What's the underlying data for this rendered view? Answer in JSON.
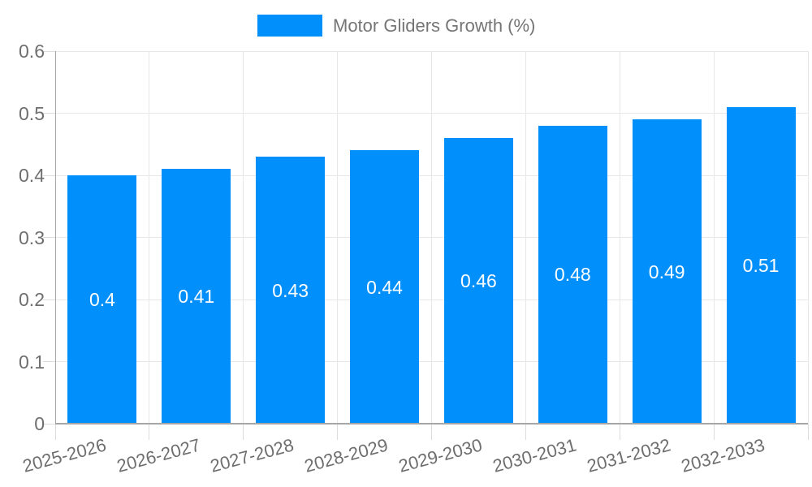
{
  "chart_data": {
    "type": "bar",
    "title": "Motor Gliders Growth (%)",
    "categories": [
      "2025-2026",
      "2026-2027",
      "2027-2028",
      "2028-2029",
      "2029-2030",
      "2030-2031",
      "2031-2032",
      "2032-2033"
    ],
    "series": [
      {
        "name": "Motor Gliders Growth (%)",
        "values": [
          0.4,
          0.41,
          0.43,
          0.44,
          0.46,
          0.48,
          0.49,
          0.51
        ],
        "data_labels": [
          "0.4",
          "0.41",
          "0.43",
          "0.44",
          "0.46",
          "0.48",
          "0.49",
          "0.51"
        ]
      }
    ],
    "xlabel": "",
    "ylabel": "",
    "ylim": [
      0,
      0.6
    ],
    "yticks": {
      "values": [
        0,
        0.1,
        0.2,
        0.3,
        0.4,
        0.5,
        0.6
      ],
      "labels": [
        "0",
        "0.1",
        "0.2",
        "0.3",
        "0.4",
        "0.5",
        "0.6"
      ]
    },
    "grid": true,
    "legend_position": "top-center",
    "x_label_rotation_deg": -15
  },
  "colors": {
    "bar": "#008FFB",
    "grid_line": "#e7e7e7",
    "axis_line": "#a6a6a6",
    "tick_mark": "#dcdcdc",
    "axis_text": "#6e6e6e",
    "legend_text": "#757575",
    "data_label_text": "#ffffff",
    "background": "#ffffff"
  }
}
